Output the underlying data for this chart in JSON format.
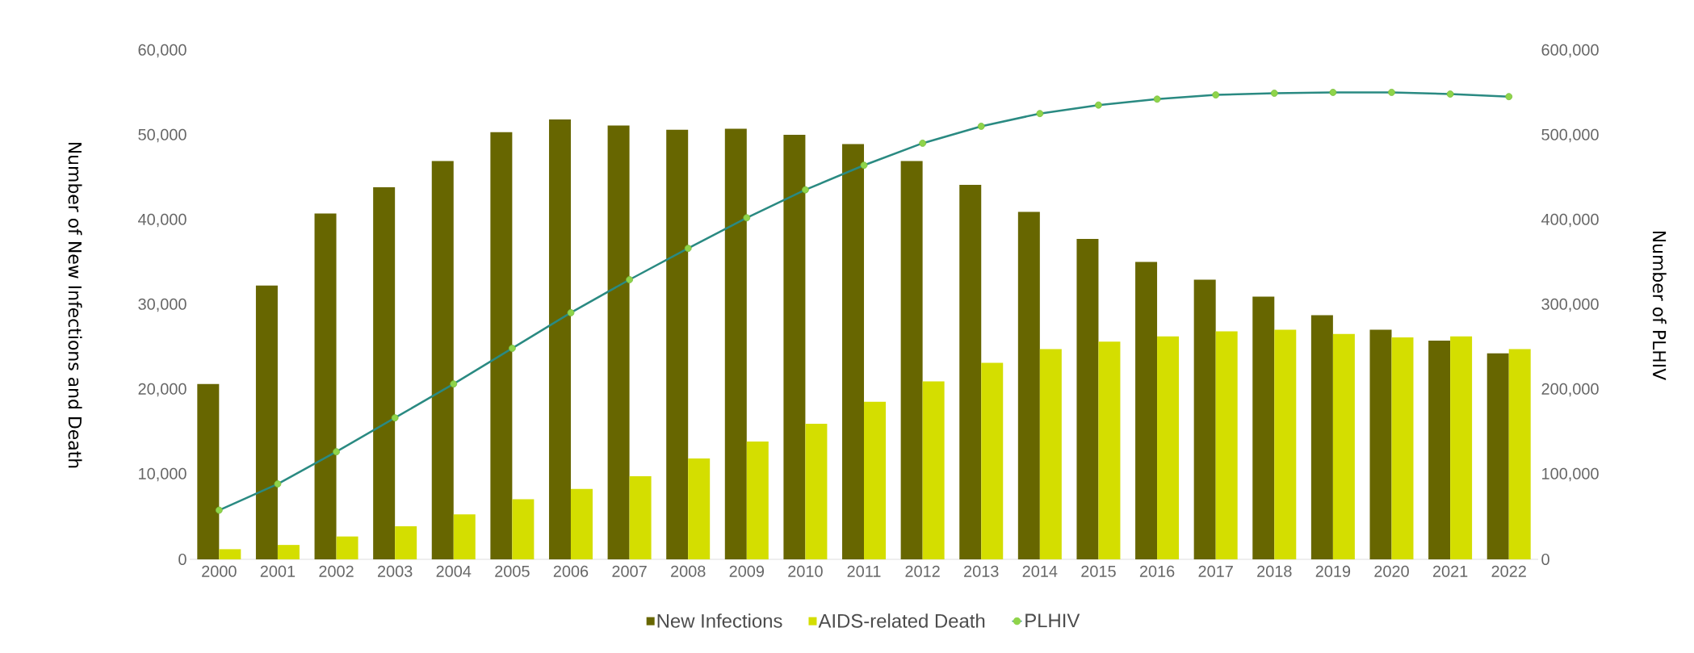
{
  "chart_data": {
    "type": "bar",
    "ylabel": "Number of New Infections and Death",
    "y2label": "Number of PLHIV",
    "categories": [
      "2000",
      "2001",
      "2002",
      "2003",
      "2004",
      "2005",
      "2006",
      "2007",
      "2008",
      "2009",
      "2010",
      "2011",
      "2012",
      "2013",
      "2014",
      "2015",
      "2016",
      "2017",
      "2018",
      "2019",
      "2020",
      "2021",
      "2022"
    ],
    "series": [
      {
        "name": "New Infections",
        "color": "#676600",
        "values": [
          20700,
          32300,
          40800,
          43900,
          47000,
          50400,
          51900,
          51200,
          50700,
          50800,
          50100,
          49000,
          47000,
          44200,
          41000,
          37800,
          35100,
          33000,
          31000,
          28800,
          27100,
          25800,
          24300
        ]
      },
      {
        "name": "AIDS-related Death",
        "color": "#d4de00",
        "values": [
          1200,
          1700,
          2700,
          3900,
          5300,
          7100,
          8300,
          9800,
          11900,
          13900,
          16000,
          18600,
          21000,
          23200,
          24800,
          25700,
          26300,
          26900,
          27100,
          26600,
          26200,
          26300,
          24800
        ]
      },
      {
        "name": "PLHIV",
        "type": "line",
        "axis": "y2",
        "color": "#2a8a82",
        "marker": "circle",
        "line_style": "solid",
        "values": [
          58000,
          89000,
          127000,
          167000,
          207000,
          249000,
          291000,
          330000,
          367000,
          403000,
          436000,
          465000,
          491000,
          511000,
          526000,
          536000,
          543000,
          548000,
          550000,
          551000,
          551000,
          549000,
          546000
        ]
      }
    ],
    "ylim": [
      0,
      60000
    ],
    "yticks": [
      0,
      {
        "value": 10000,
        "label": "10,000"
      },
      {
        "value": 20000,
        "label": "20,000"
      },
      {
        "value": 30000,
        "label": "30,000"
      },
      {
        "value": 40000,
        "label": "40,000"
      },
      {
        "value": 50000,
        "label": "50,000"
      },
      {
        "value": 60000,
        "label": "60,000"
      }
    ],
    "y2lim": [
      0,
      600000
    ],
    "y2ticks": [
      0,
      {
        "value": 100000,
        "label": "100,000"
      },
      {
        "value": 200000,
        "label": "200,000"
      },
      {
        "value": 300000,
        "label": "300,000"
      },
      {
        "value": 400000,
        "label": "400,000"
      },
      {
        "value": 500000,
        "label": "500,000"
      },
      {
        "value": 600000,
        "label": "600,000"
      }
    ],
    "grid": false,
    "legend": "bottom"
  }
}
